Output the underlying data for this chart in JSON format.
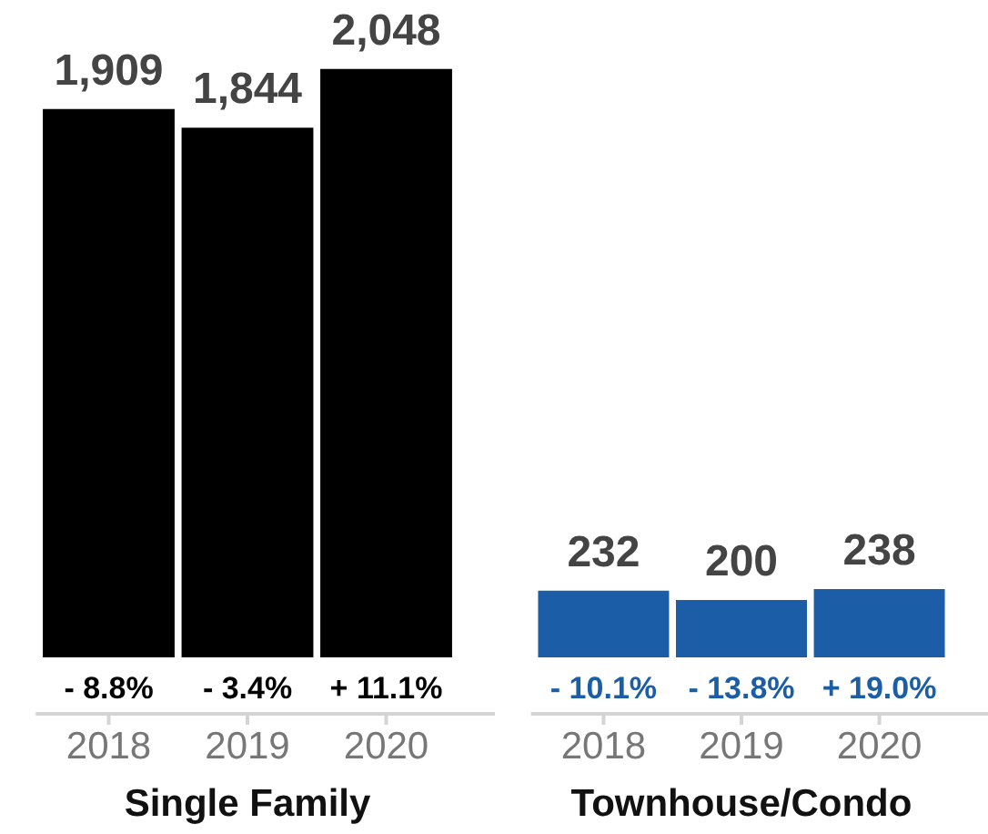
{
  "chart_data": [
    {
      "type": "bar",
      "categories": [
        "2018",
        "2019",
        "2020"
      ],
      "values": [
        1909,
        1844,
        2048
      ],
      "color": "#000000",
      "xlabel": "Single Family",
      "tick_labels": "x",
      "value_labels": [
        "1,909",
        "1,844",
        "2,048"
      ],
      "annotations": [
        {
          "text": "- 8.8%",
          "x": "2018",
          "y": 0
        },
        {
          "text": "- 3.4%",
          "x": "2019",
          "y": 0
        },
        {
          "text": "+ 11.1%",
          "x": "2020",
          "y": 0
        }
      ]
    },
    {
      "type": "bar",
      "categories": [
        "2018",
        "2019",
        "2020"
      ],
      "values": [
        232,
        200,
        238
      ],
      "color": "#1b5da6",
      "xlabel": "Townhouse/Condo",
      "tick_labels": "x",
      "data_labels": true,
      "annotations": [
        {
          "text": "- 10.1%",
          "x": "2018",
          "y": 0
        },
        {
          "text": "- 13.8%",
          "x": "2019",
          "y": 0
        },
        {
          "text": "+ 19.0%",
          "x": "2020",
          "y": 0
        }
      ]
    }
  ]
}
